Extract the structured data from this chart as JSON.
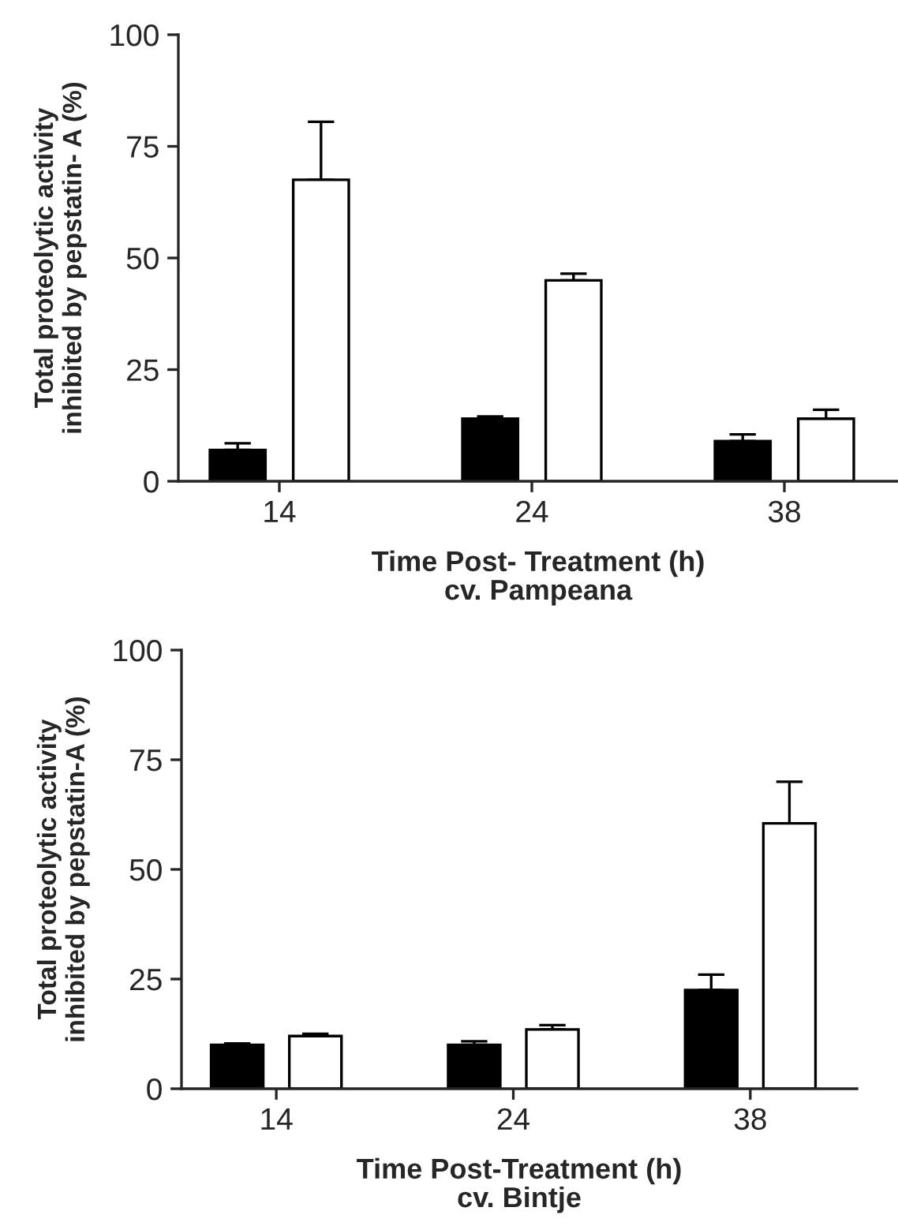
{
  "chart_data": [
    {
      "type": "bar",
      "xlabel": "Time Post- Treatment (h)\ncv. Pampeana",
      "ylabel": "Total proteolytic activity\ninhibited by pepstatin- A (%)",
      "categories": [
        "14",
        "24",
        "38"
      ],
      "ylim": [
        0,
        100
      ],
      "yticks": [
        0,
        25,
        50,
        75,
        100
      ],
      "series": [
        {
          "color": "#000000",
          "values": [
            7,
            14,
            9
          ],
          "errors": [
            [
              7,
              8.5
            ],
            [
              14,
              14.5
            ],
            [
              9,
              10.5
            ]
          ]
        },
        {
          "color": "#ffffff",
          "values": [
            67.5,
            45,
            14
          ],
          "errors": [
            [
              67.5,
              80.5
            ],
            [
              45,
              46.5
            ],
            [
              14,
              16
            ]
          ]
        }
      ]
    },
    {
      "type": "bar",
      "xlabel": "Time Post-Treatment (h)\ncv. Bintje",
      "ylabel": "Total proteolytic activity\ninhibited by pepstatin-A (%)",
      "categories": [
        "14",
        "24",
        "38"
      ],
      "ylim": [
        0,
        100
      ],
      "yticks": [
        0,
        25,
        50,
        75,
        100
      ],
      "series": [
        {
          "color": "#000000",
          "values": [
            10,
            10,
            22.5
          ],
          "errors": [
            [
              10,
              10.3
            ],
            [
              10,
              10.8
            ],
            [
              22.5,
              26
            ]
          ]
        },
        {
          "color": "#ffffff",
          "values": [
            12,
            13.5,
            60.5
          ],
          "errors": [
            [
              12,
              12.5
            ],
            [
              13.5,
              14.5
            ],
            [
              60.5,
              70
            ]
          ]
        }
      ]
    }
  ]
}
